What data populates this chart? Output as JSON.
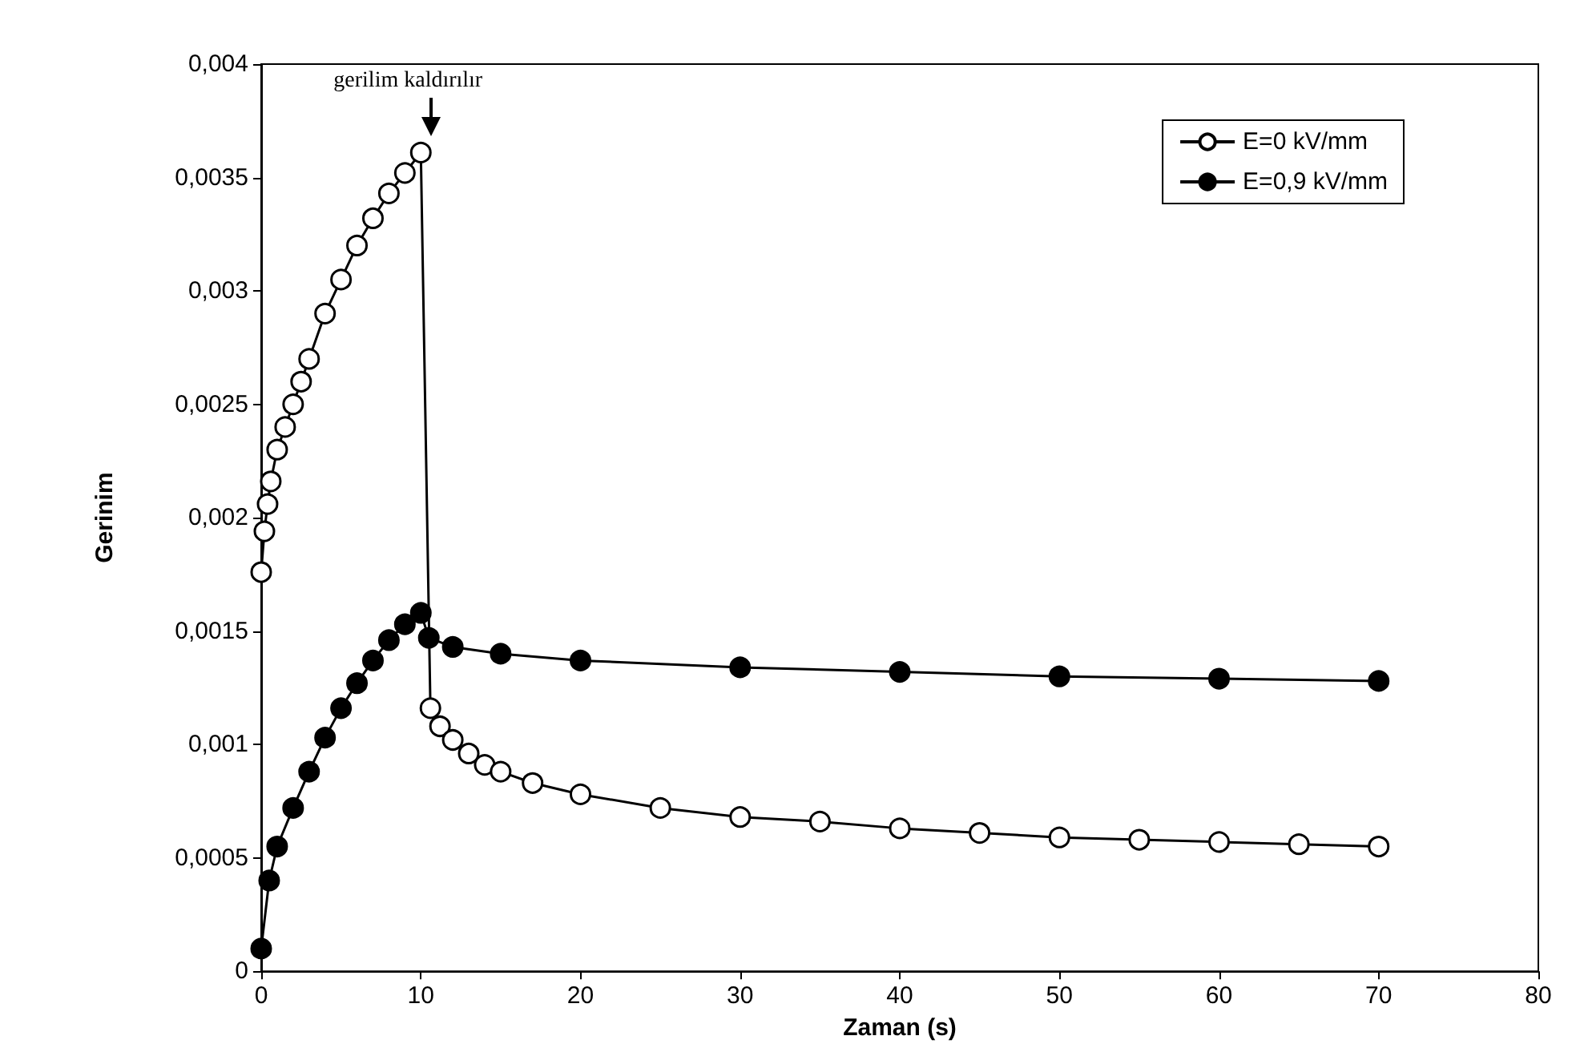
{
  "chart_data": {
    "type": "line",
    "xlabel": "Zaman (s)",
    "ylabel": "Gerinim",
    "annotations": [
      "gerilim kaldırılır"
    ],
    "xlim": [
      0,
      80
    ],
    "xticks": [
      0,
      10,
      20,
      30,
      40,
      50,
      60,
      70,
      80
    ],
    "ylim": [
      0,
      0.004
    ],
    "yticks": [
      0,
      {
        "value": 0.0005,
        "label": "0,0005"
      },
      {
        "value": 0.001,
        "label": "0,001"
      },
      {
        "value": 0.0015,
        "label": "0,0015"
      },
      {
        "value": 0.002,
        "label": "0,002"
      },
      {
        "value": 0.0025,
        "label": "0,0025"
      },
      {
        "value": 0.003,
        "label": "0,003"
      },
      {
        "value": 0.0035,
        "label": "0,0035"
      },
      {
        "value": 0.004,
        "label": "0,004"
      }
    ],
    "grid": false,
    "legend": "top right",
    "marker": "circle",
    "line_style": "solid",
    "series": [
      {
        "name": "E=0 kV/mm",
        "color": "#ffffff",
        "x": [
          0,
          0.2,
          0.4,
          0.6,
          1,
          1.5,
          2,
          2.5,
          3,
          4,
          5,
          6,
          7,
          8,
          9,
          10,
          10.6,
          11.2,
          12,
          13,
          14,
          15,
          17,
          20,
          25,
          30,
          35,
          40,
          45,
          50,
          55,
          60,
          65,
          70
        ],
        "values": [
          0.00176,
          0.00194,
          0.00206,
          0.00216,
          0.0023,
          0.0024,
          0.0025,
          0.0026,
          0.0027,
          0.0029,
          0.00305,
          0.0032,
          0.00332,
          0.00343,
          0.00352,
          0.00361,
          0.00116,
          0.00108,
          0.00102,
          0.00096,
          0.00091,
          0.00088,
          0.00083,
          0.00078,
          0.00072,
          0.00068,
          0.00066,
          0.00063,
          0.00061,
          0.00059,
          0.00058,
          0.00057,
          0.00056,
          0.00055
        ]
      },
      {
        "name": "E=0,9 kV/mm",
        "color": "#000000",
        "x": [
          0,
          0.5,
          1,
          2,
          3,
          4,
          5,
          6,
          7,
          8,
          9,
          10,
          10.5,
          12,
          15,
          20,
          30,
          40,
          50,
          60,
          70
        ],
        "values": [
          0.0001,
          0.0004,
          0.00055,
          0.00072,
          0.00088,
          0.00103,
          0.00116,
          0.00127,
          0.00137,
          0.00146,
          0.00153,
          0.00158,
          0.00147,
          0.00143,
          0.0014,
          0.00137,
          0.00134,
          0.00132,
          0.0013,
          0.00129,
          0.00128
        ]
      }
    ]
  }
}
